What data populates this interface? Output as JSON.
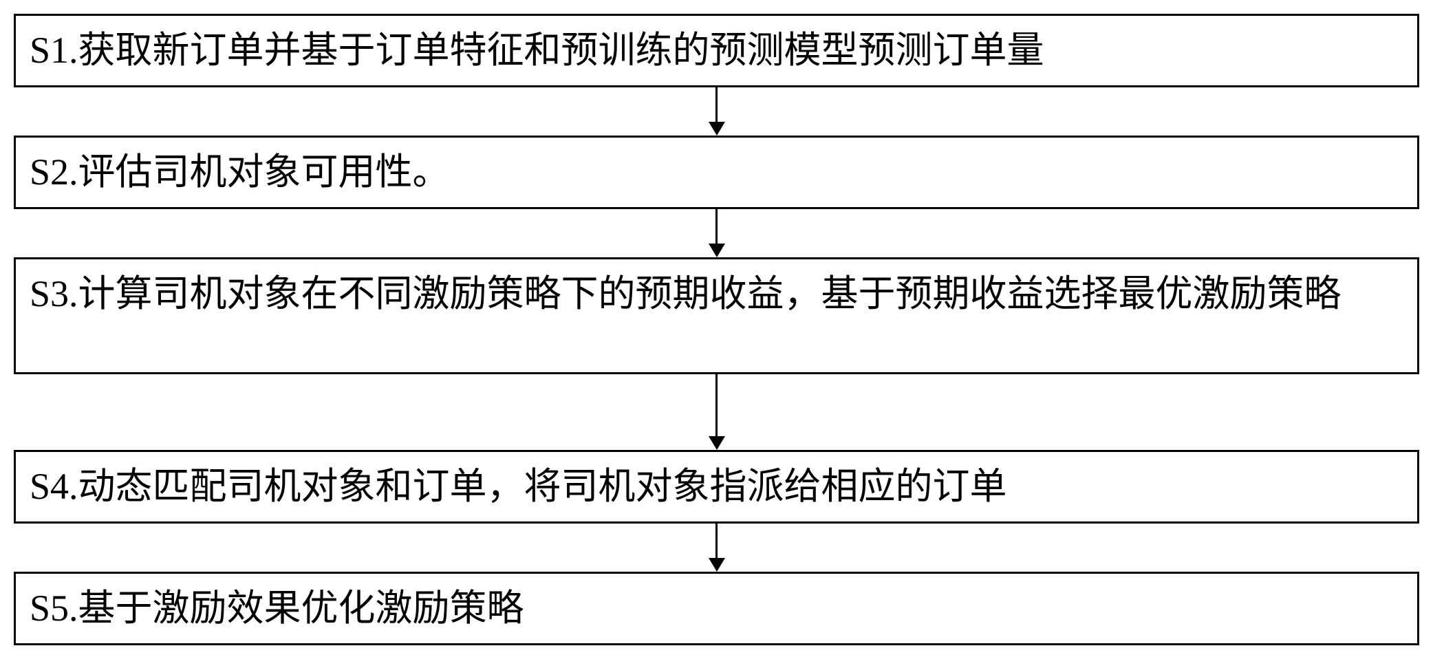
{
  "flowchart": {
    "type": "flowchart",
    "direction": "vertical",
    "background_color": "#ffffff",
    "border_color": "#000000",
    "border_width": 3,
    "text_color": "#000000",
    "font_family": "SimSun",
    "font_size": 54,
    "arrow_color": "#000000",
    "arrow_width": 3,
    "arrow_head_size": 20,
    "box_width_ratio": 1.0,
    "steps": [
      {
        "id": "s1",
        "text": "S1.获取新订单并基于订单特征和预训练的预测模型预测订单量",
        "multiline": false
      },
      {
        "id": "s2",
        "text": "S2.评估司机对象可用性。",
        "multiline": false
      },
      {
        "id": "s3",
        "text": "S3.计算司机对象在不同激励策略下的预期收益，基于预期收益选择最优激励策略",
        "multiline": true
      },
      {
        "id": "s4",
        "text": "S4.动态匹配司机对象和订单，将司机对象指派给相应的订单",
        "multiline": false
      },
      {
        "id": "s5",
        "text": "S5.基于激励效果优化激励策略",
        "multiline": false
      }
    ],
    "arrow_heights": [
      70,
      70,
      110,
      70
    ]
  }
}
